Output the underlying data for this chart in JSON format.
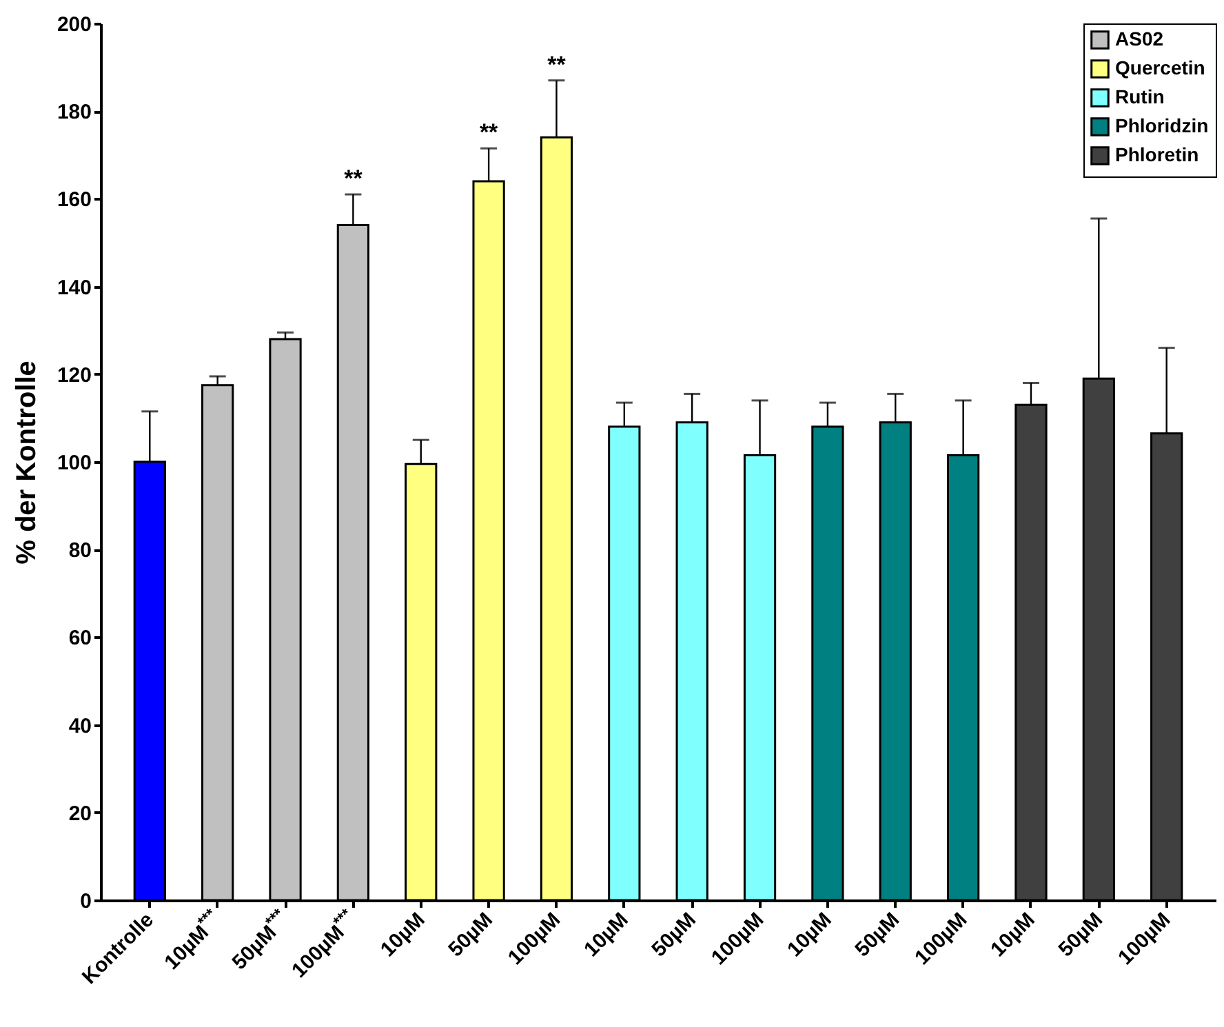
{
  "chart_data": {
    "type": "bar",
    "ylabel": "% der Kontrolle",
    "categories": [
      "Kontrolle",
      "10µM$^{***}$",
      "50µM$^{***}$",
      "100µM$^{***}$",
      "10µM",
      "50µM",
      "100µM",
      "10µM",
      "50µM",
      "100µM",
      "10µM",
      "50µM",
      "100µM",
      "10µM",
      "50µM",
      "100µM"
    ],
    "series": [
      {
        "color": "#0000ff",
        "values": [
          100,
          null,
          null,
          null,
          null,
          null,
          null,
          null,
          null,
          null,
          null,
          null,
          null,
          null,
          null,
          null
        ],
        "errors": [
          [
            100,
            111.5
          ],
          null,
          null,
          null,
          null,
          null,
          null,
          null,
          null,
          null,
          null,
          null,
          null,
          null,
          null,
          null
        ]
      },
      {
        "name": "AS02",
        "color": "#c0c0c0",
        "values": [
          null,
          117.5,
          128,
          154,
          null,
          null,
          null,
          null,
          null,
          null,
          null,
          null,
          null,
          null,
          null,
          null
        ],
        "errors": [
          null,
          [
            117.5,
            119.5
          ],
          [
            128,
            129.5
          ],
          [
            154,
            161
          ],
          null,
          null,
          null,
          null,
          null,
          null,
          null,
          null,
          null,
          null,
          null,
          null
        ]
      },
      {
        "name": "Quercetin",
        "color": "#ffff80",
        "values": [
          null,
          null,
          null,
          null,
          99.5,
          164,
          174,
          null,
          null,
          null,
          null,
          null,
          null,
          null,
          null,
          null
        ],
        "errors": [
          null,
          null,
          null,
          null,
          [
            99.5,
            105
          ],
          [
            164,
            171.5
          ],
          [
            174,
            187
          ],
          null,
          null,
          null,
          null,
          null,
          null,
          null,
          null,
          null
        ]
      },
      {
        "name": "Rutin",
        "color": "#80ffff",
        "values": [
          null,
          null,
          null,
          null,
          null,
          null,
          null,
          108,
          109,
          101.5,
          null,
          null,
          null,
          null,
          null,
          null
        ],
        "errors": [
          null,
          null,
          null,
          null,
          null,
          null,
          null,
          [
            108,
            113.5
          ],
          [
            109,
            115.5
          ],
          [
            101.5,
            114
          ],
          null,
          null,
          null,
          null,
          null,
          null
        ]
      },
      {
        "name": "Phloridzin",
        "color": "#008080",
        "values": [
          null,
          null,
          null,
          null,
          null,
          null,
          null,
          null,
          null,
          null,
          108,
          109,
          101.5,
          null,
          null,
          null
        ],
        "errors": [
          null,
          null,
          null,
          null,
          null,
          null,
          null,
          null,
          null,
          null,
          [
            108,
            113.5
          ],
          [
            109,
            115.5
          ],
          [
            101.5,
            114
          ],
          null,
          null,
          null
        ]
      },
      {
        "name": "Phloretin",
        "color": "#404040",
        "values": [
          null,
          null,
          null,
          null,
          null,
          null,
          null,
          null,
          null,
          null,
          null,
          null,
          null,
          113,
          119,
          106.5
        ],
        "errors": [
          null,
          null,
          null,
          null,
          null,
          null,
          null,
          null,
          null,
          null,
          null,
          null,
          null,
          [
            113,
            118
          ],
          [
            119,
            155.5
          ],
          [
            106.5,
            126
          ]
        ]
      }
    ],
    "annotations": [
      {
        "text": "**",
        "x": "100µM$^{***}$",
        "y": 161
      },
      {
        "text": "**",
        "x": "50µM",
        "y": 171.5
      },
      {
        "text": "**",
        "x": "100µM",
        "y": 187
      }
    ],
    "ylim": [
      0,
      200
    ],
    "yticks": [
      0,
      20,
      40,
      60,
      80,
      100,
      120,
      140,
      160,
      180,
      200
    ],
    "grid": false,
    "legend": "top right"
  }
}
